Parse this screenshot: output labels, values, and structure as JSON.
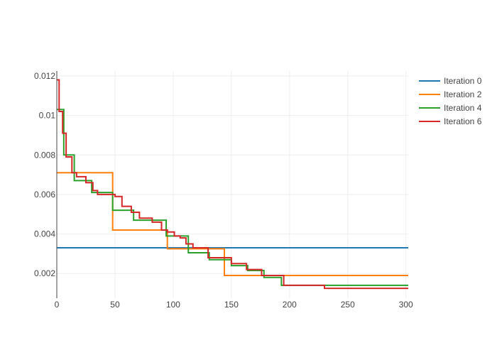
{
  "chart_data": {
    "type": "line",
    "title": "",
    "xlabel": "",
    "ylabel": "",
    "xlim": [
      0,
      302
    ],
    "ylim": [
      0.00075,
      0.01225
    ],
    "x_ticks": [
      0,
      50,
      100,
      150,
      200,
      250,
      300
    ],
    "y_ticks": [
      0.002,
      0.004,
      0.006,
      0.008,
      0.01,
      0.012
    ],
    "grid": true,
    "line_shape": "step",
    "legend": "top-right",
    "series": [
      {
        "name": "Iteration 0",
        "color": "#1f77b4",
        "points": [
          [
            0,
            0.0033
          ],
          [
            302,
            0.0033
          ]
        ]
      },
      {
        "name": "Iteration 2",
        "color": "#ff7f0e",
        "points": [
          [
            0,
            0.0071
          ],
          [
            48,
            0.0042
          ],
          [
            95,
            0.00325
          ],
          [
            144,
            0.0019
          ],
          [
            302,
            0.0019
          ]
        ]
      },
      {
        "name": "Iteration 4",
        "color": "#2ca02c",
        "points": [
          [
            0,
            0.0103
          ],
          [
            6,
            0.008
          ],
          [
            15,
            0.0067
          ],
          [
            30,
            0.0061
          ],
          [
            48,
            0.0052
          ],
          [
            66,
            0.0047
          ],
          [
            94,
            0.0039
          ],
          [
            113,
            0.00305
          ],
          [
            131,
            0.0027
          ],
          [
            150,
            0.0024
          ],
          [
            164,
            0.00215
          ],
          [
            178,
            0.0018
          ],
          [
            193,
            0.0014
          ],
          [
            302,
            0.0014
          ]
        ]
      },
      {
        "name": "Iteration 6",
        "color": "#d62728",
        "points": [
          [
            0,
            0.0118
          ],
          [
            2,
            0.0102
          ],
          [
            5,
            0.0091
          ],
          [
            8,
            0.0079
          ],
          [
            13,
            0.0071
          ],
          [
            17,
            0.0069
          ],
          [
            25,
            0.0066
          ],
          [
            31,
            0.0062
          ],
          [
            35,
            0.006
          ],
          [
            50,
            0.0059
          ],
          [
            56,
            0.0054
          ],
          [
            64,
            0.0051
          ],
          [
            71,
            0.0048
          ],
          [
            82,
            0.0046
          ],
          [
            90,
            0.0042
          ],
          [
            95,
            0.0041
          ],
          [
            101,
            0.0039
          ],
          [
            106,
            0.0038
          ],
          [
            111,
            0.0035
          ],
          [
            117,
            0.0033
          ],
          [
            130,
            0.0028
          ],
          [
            150,
            0.0025
          ],
          [
            163,
            0.0022
          ],
          [
            176,
            0.0019
          ],
          [
            195,
            0.0014
          ],
          [
            230,
            0.00125
          ],
          [
            302,
            0.00125
          ]
        ]
      }
    ]
  }
}
